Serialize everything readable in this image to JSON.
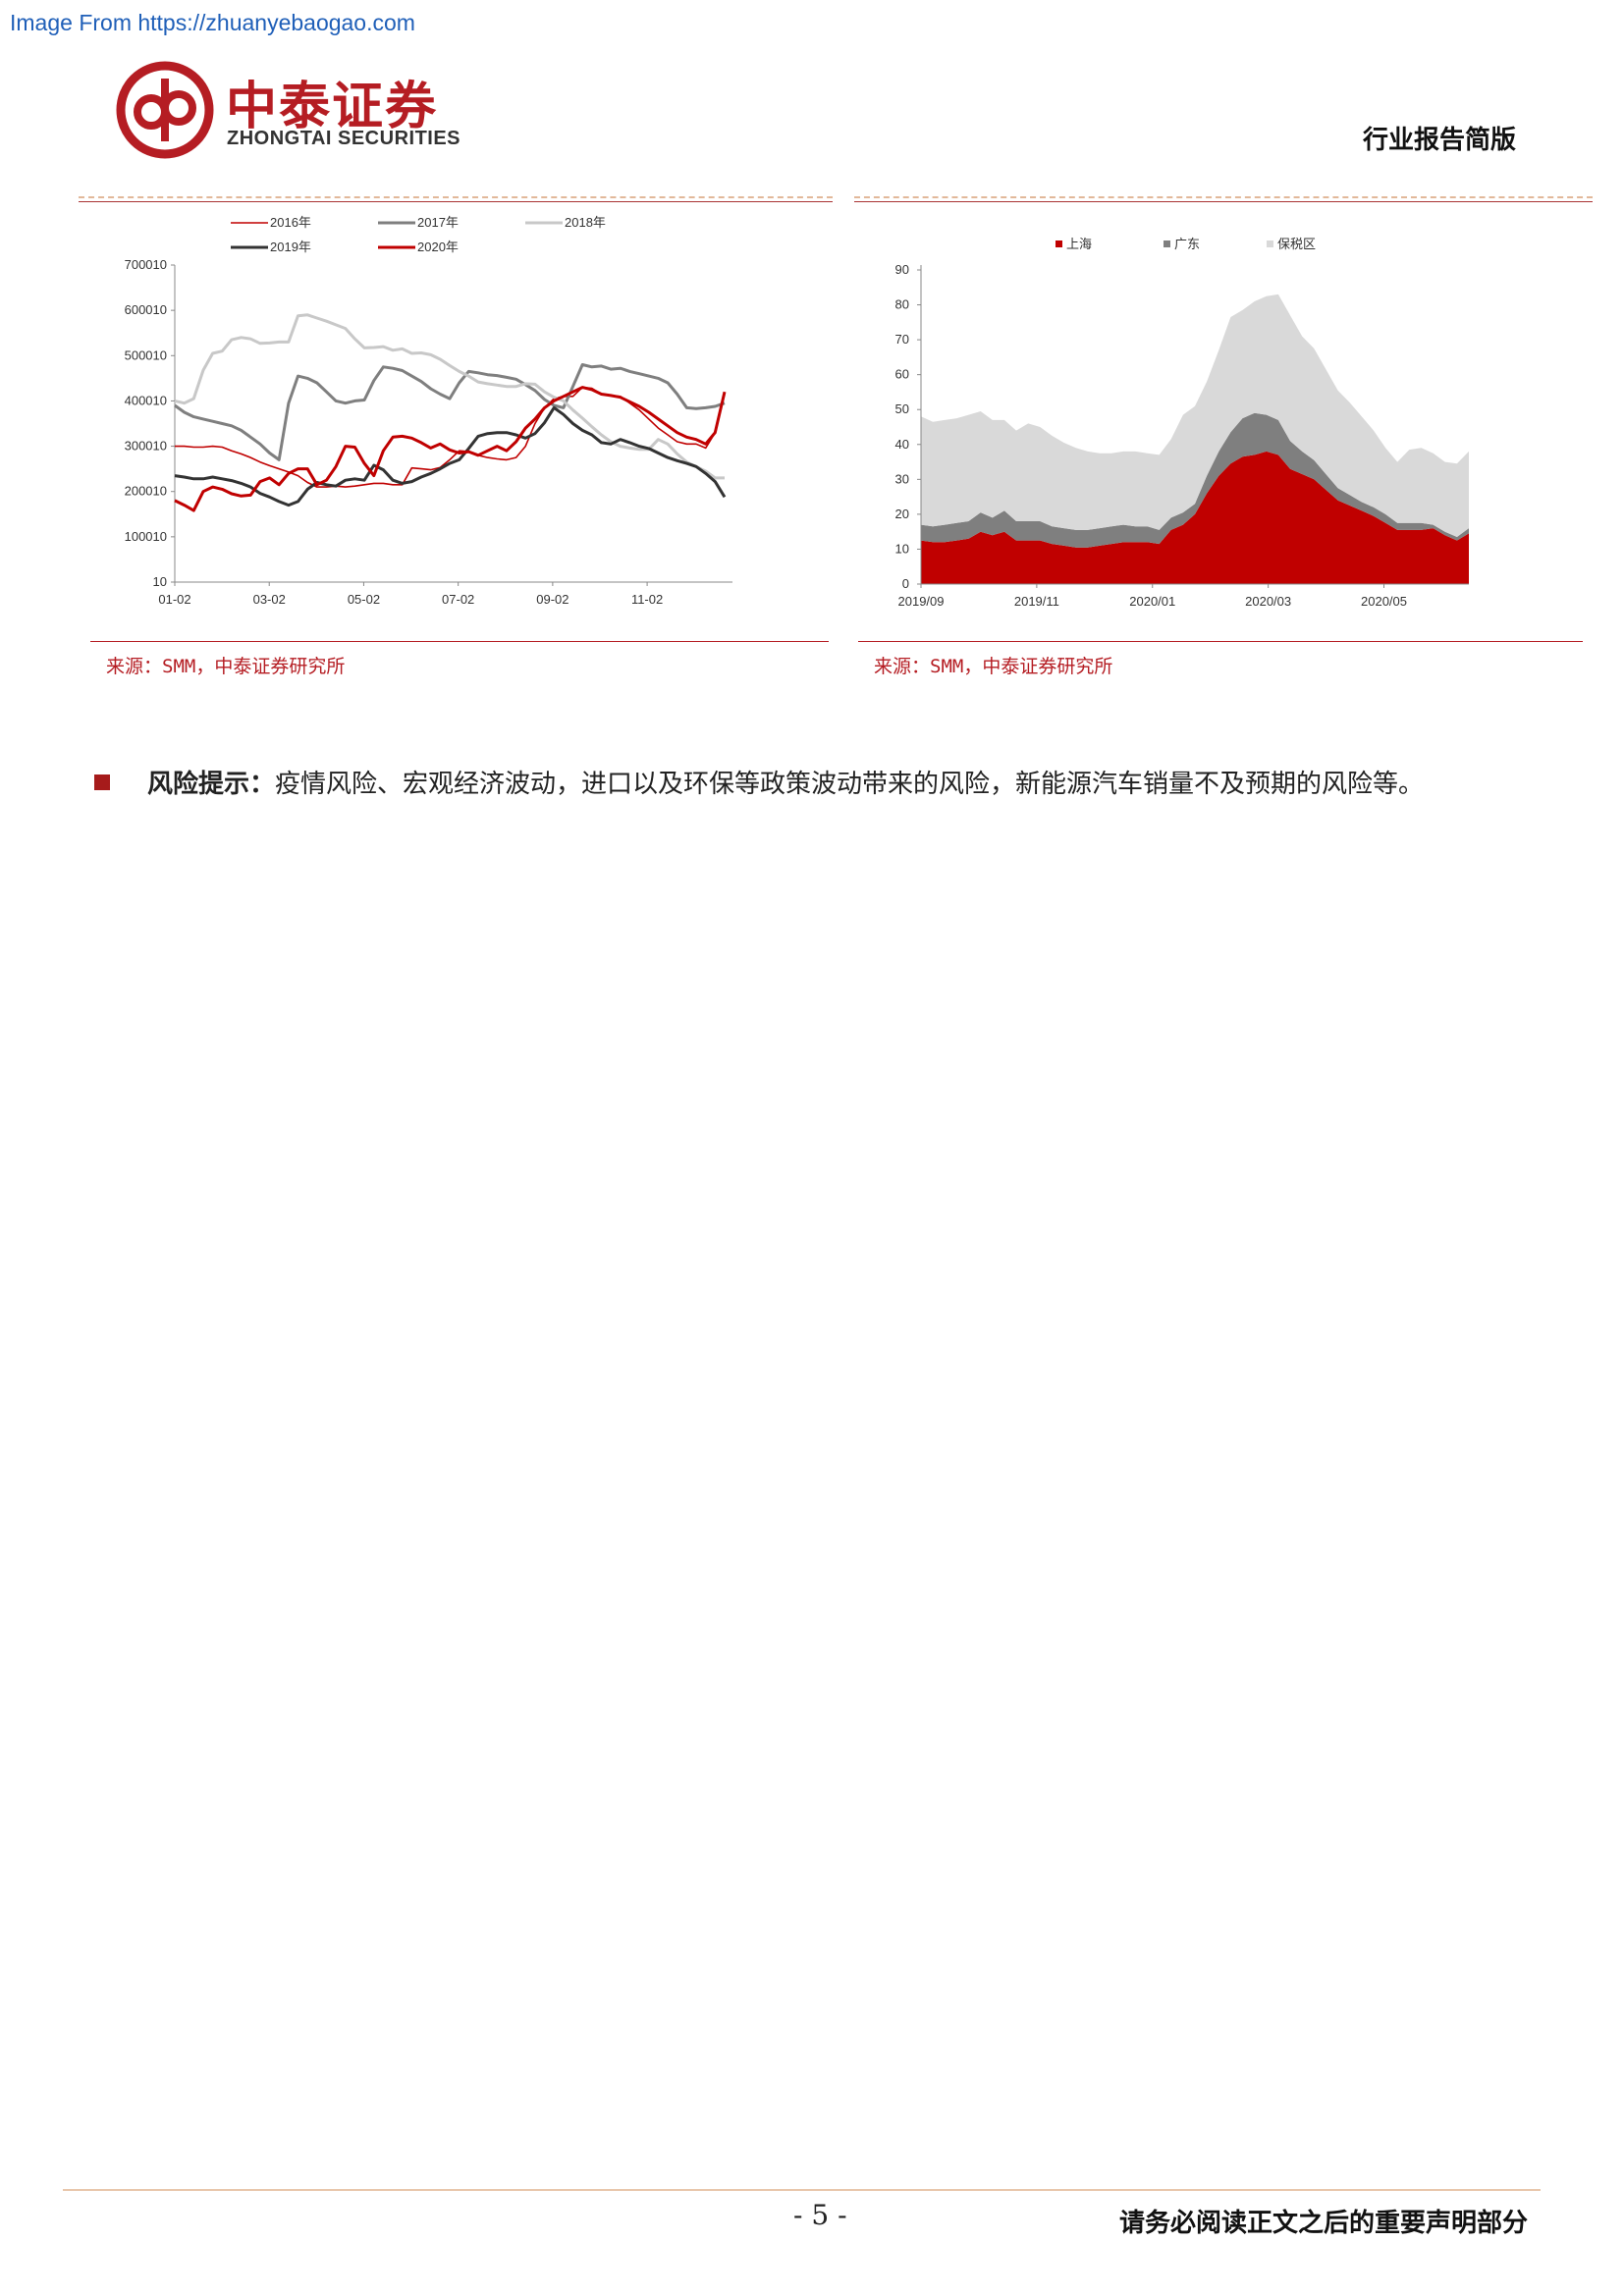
{
  "watermark": "Image From https://zhuanyebaogao.com",
  "header": {
    "logo_cn": "中泰证券",
    "logo_en": "ZHONGTAI SECURITIES",
    "report_type": "行业报告简版"
  },
  "colors": {
    "brand_red": "#b51d23",
    "dark_red": "#c00000",
    "gray": "#7f7f7f",
    "light_gray": "#d9d9d9"
  },
  "chart_data": [
    {
      "type": "line",
      "title": "",
      "xlabel": "",
      "ylabel": "",
      "x_ticks": [
        "01-02",
        "03-02",
        "05-02",
        "07-02",
        "09-02",
        "11-02"
      ],
      "y_ticks": [
        "10",
        "100010",
        "200010",
        "300010",
        "400010",
        "500010",
        "600010",
        "700010"
      ],
      "ylim": [
        10,
        700010
      ],
      "x_range": [
        0,
        58
      ],
      "legend_position": "top",
      "series": [
        {
          "name": "2016年",
          "color": "#c00000",
          "width": 1.6,
          "values": [
            300000,
            300000,
            298000,
            298000,
            300000,
            298000,
            290000,
            283000,
            275000,
            265000,
            257000,
            250000,
            243000,
            235000,
            220000,
            210000,
            210000,
            212000,
            210000,
            212000,
            215000,
            218000,
            218000,
            215000,
            215000,
            252000,
            250000,
            248000,
            253000,
            270000,
            290000,
            288000,
            280000,
            275000,
            272000,
            270000,
            275000,
            300000,
            350000,
            385000,
            405000,
            410000,
            410000,
            430000,
            428000,
            415000,
            412000,
            410000,
            395000,
            380000,
            360000,
            340000,
            325000,
            310000,
            305000,
            305000,
            296000,
            330000,
            415000
          ]
        },
        {
          "name": "2017年",
          "color": "#7f7f7f",
          "width": 3,
          "values": [
            390000,
            375000,
            365000,
            360000,
            355000,
            350000,
            345000,
            335000,
            320000,
            305000,
            285000,
            270000,
            395000,
            455000,
            450000,
            440000,
            420000,
            400000,
            395000,
            400000,
            402000,
            445000,
            475000,
            472000,
            467000,
            455000,
            443000,
            427000,
            415000,
            405000,
            440000,
            465000,
            462000,
            458000,
            456000,
            452000,
            448000,
            436000,
            423000,
            403000,
            390000,
            385000,
            432000,
            480000,
            475000,
            477000,
            470000,
            472000,
            465000,
            460000,
            455000,
            450000,
            440000,
            415000,
            385000,
            383000,
            385000,
            388000,
            395000
          ]
        },
        {
          "name": "2018年",
          "color": "#c8c8c8",
          "width": 3,
          "values": [
            400000,
            395000,
            405000,
            468000,
            505000,
            510000,
            535000,
            540000,
            537000,
            527000,
            528000,
            530000,
            530000,
            588000,
            590000,
            583000,
            576000,
            568000,
            560000,
            537000,
            517000,
            518000,
            520000,
            512000,
            515000,
            505000,
            506000,
            502000,
            492000,
            478000,
            465000,
            455000,
            442000,
            438000,
            435000,
            432000,
            432000,
            438000,
            437000,
            420000,
            408000,
            400000,
            380000,
            362000,
            343000,
            325000,
            310000,
            300000,
            296000,
            293000,
            293000,
            315000,
            305000,
            283000,
            265000,
            255000,
            245000,
            230000,
            230000
          ]
        },
        {
          "name": "2019年",
          "color": "#333333",
          "width": 3,
          "values": [
            235000,
            232000,
            228000,
            228000,
            232000,
            228000,
            224000,
            218000,
            210000,
            196000,
            188000,
            178000,
            170000,
            178000,
            205000,
            220000,
            215000,
            212000,
            225000,
            228000,
            225000,
            258000,
            248000,
            225000,
            218000,
            222000,
            232000,
            240000,
            250000,
            262000,
            270000,
            295000,
            322000,
            328000,
            330000,
            330000,
            325000,
            318000,
            328000,
            352000,
            385000,
            370000,
            350000,
            335000,
            325000,
            308000,
            305000,
            315000,
            308000,
            300000,
            295000,
            285000,
            275000,
            268000,
            262000,
            255000,
            240000,
            222000,
            188000
          ]
        },
        {
          "name": "2020年",
          "color": "#c00000",
          "width": 3,
          "values": [
            180000,
            170000,
            158000,
            200000,
            210000,
            205000,
            195000,
            190000,
            192000,
            222000,
            230000,
            215000,
            240000,
            250000,
            250000,
            215000,
            225000,
            255000,
            300000,
            298000,
            262000,
            235000,
            290000,
            320000,
            322000,
            318000,
            308000,
            296000,
            305000,
            292000,
            285000,
            288000,
            280000,
            290000,
            300000,
            290000,
            310000,
            340000,
            360000,
            385000,
            400000,
            410000,
            420000,
            430000,
            425000,
            415000,
            412000,
            408000,
            398000,
            388000,
            375000,
            360000,
            345000,
            330000,
            320000,
            315000,
            305000,
            330000,
            420000
          ]
        }
      ],
      "source": "来源：SMM，中泰证券研究所"
    },
    {
      "type": "area",
      "stacked": true,
      "title": "",
      "xlabel": "",
      "ylabel": "",
      "x_ticks": [
        "2019/09",
        "2019/11",
        "2020/01",
        "2020/03",
        "2020/05"
      ],
      "y_ticks": [
        "0",
        "10",
        "20",
        "30",
        "40",
        "50",
        "60",
        "70",
        "80",
        "90"
      ],
      "ylim": [
        0,
        90
      ],
      "x_range": [
        0,
        40
      ],
      "legend_position": "top",
      "series": [
        {
          "name": "上海",
          "color": "#c00000",
          "values": [
            12.5,
            12,
            12,
            12.5,
            13,
            15,
            14,
            15,
            12.5,
            12.5,
            12.5,
            11.5,
            11,
            10.5,
            10.5,
            11,
            11.5,
            12,
            12,
            12,
            11.5,
            15.5,
            17,
            20,
            26,
            31,
            34.5,
            36.5,
            37,
            38,
            37,
            33,
            31.5,
            30,
            27,
            24,
            22.5,
            21,
            19.5,
            17.5,
            15.5,
            15.5,
            15.5,
            16,
            14,
            12.5,
            14.5
          ]
        },
        {
          "name": "广东",
          "color": "#7f7f7f",
          "values": [
            4.5,
            4.5,
            5,
            5,
            5,
            5.5,
            5,
            6,
            5.5,
            5.5,
            5.5,
            5,
            5,
            5,
            5,
            5,
            5,
            5,
            4.5,
            4.5,
            4,
            3.5,
            3.5,
            3,
            5,
            7,
            9,
            11,
            12,
            10.5,
            10,
            8,
            6.5,
            5.5,
            4.5,
            3.5,
            3,
            2.5,
            2.5,
            2.5,
            2,
            2,
            2,
            1,
            1,
            1,
            1.5
          ]
        },
        {
          "name": "保税区",
          "color": "#d9d9d9",
          "values": [
            31,
            30,
            30,
            30,
            30.5,
            29,
            28,
            26,
            26,
            28,
            27,
            26,
            24.5,
            23.5,
            22.5,
            21.5,
            21,
            21,
            21.5,
            21,
            21.5,
            22.5,
            28,
            28,
            27,
            29,
            33,
            31,
            32,
            34,
            36,
            36,
            33,
            32,
            30,
            28,
            26.5,
            24.5,
            22,
            19,
            17.5,
            21,
            21.5,
            20.5,
            20,
            21,
            22
          ]
        }
      ],
      "source": "来源：SMM，中泰证券研究所"
    }
  ],
  "risk": {
    "label": "风险提示：",
    "text": "疫情风险、宏观经济波动，进口以及环保等政策波动带来的风险，新能源汽车销量不及预期的风险等。"
  },
  "footer": {
    "page_number": "- 5 -",
    "disclaimer": "请务必阅读正文之后的重要声明部分"
  }
}
